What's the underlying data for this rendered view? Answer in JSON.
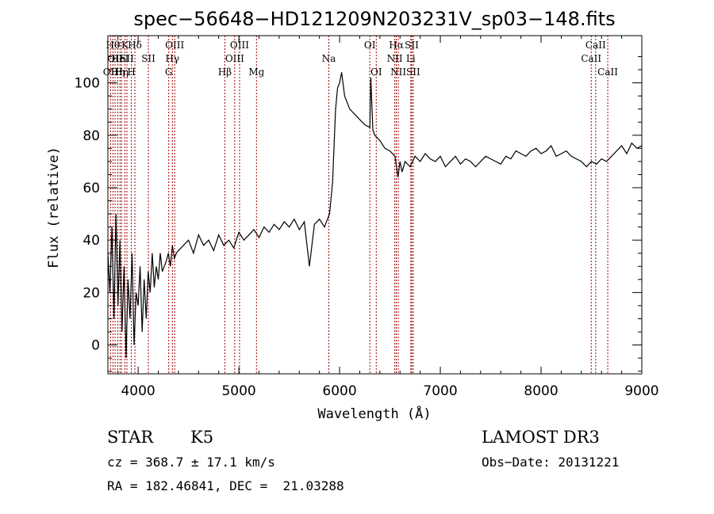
{
  "chart_data": {
    "type": "line",
    "title": "spec−56648−HD121209N203231V_sp03−148.fits",
    "xlabel": "Wavelength (Å)",
    "ylabel": "Flux (relative)",
    "xlim": [
      3700,
      9000
    ],
    "ylim": [
      -11,
      118
    ],
    "x_ticks": [
      4000,
      5000,
      6000,
      7000,
      8000,
      9000
    ],
    "y_ticks": [
      0,
      20,
      40,
      60,
      80,
      100
    ],
    "grid": false,
    "series_color": "#000000",
    "line_marker_color": "#a00000",
    "series": [
      {
        "x": [
          3700,
          3720,
          3740,
          3760,
          3780,
          3800,
          3820,
          3840,
          3860,
          3880,
          3900,
          3920,
          3940,
          3960,
          3980,
          4000,
          4020,
          4040,
          4060,
          4080,
          4100,
          4120,
          4140,
          4160,
          4180,
          4200,
          4220,
          4240,
          4260,
          4280,
          4300,
          4320,
          4340,
          4360,
          4380,
          4400,
          4450,
          4500,
          4550,
          4600,
          4650,
          4700,
          4750,
          4800,
          4850,
          4900,
          4950,
          5000,
          5050,
          5100,
          5150,
          5200,
          5250,
          5300,
          5350,
          5400,
          5450,
          5500,
          5550,
          5600,
          5650,
          5700,
          5750,
          5800,
          5850,
          5900,
          5930,
          5960,
          5980,
          6000,
          6020,
          6050,
          6100,
          6150,
          6200,
          6250,
          6300,
          6310,
          6330,
          6350,
          6400,
          6450,
          6500,
          6550,
          6580,
          6600,
          6620,
          6650,
          6700,
          6750,
          6800,
          6850,
          6900,
          6950,
          7000,
          7050,
          7100,
          7150,
          7200,
          7250,
          7300,
          7350,
          7400,
          7450,
          7500,
          7550,
          7600,
          7650,
          7700,
          7750,
          7800,
          7850,
          7900,
          7950,
          8000,
          8050,
          8100,
          8150,
          8200,
          8250,
          8300,
          8350,
          8400,
          8450,
          8500,
          8550,
          8600,
          8650,
          8700,
          8750,
          8800,
          8850,
          8900,
          8950,
          9000
        ],
        "y": [
          35,
          20,
          45,
          10,
          50,
          15,
          40,
          5,
          30,
          -5,
          25,
          10,
          35,
          0,
          20,
          15,
          30,
          5,
          25,
          10,
          28,
          20,
          35,
          22,
          30,
          25,
          35,
          28,
          30,
          32,
          35,
          30,
          38,
          33,
          35,
          36,
          38,
          40,
          35,
          42,
          38,
          40,
          36,
          42,
          38,
          40,
          37,
          43,
          40,
          42,
          44,
          41,
          45,
          43,
          46,
          44,
          47,
          45,
          48,
          44,
          47,
          30,
          46,
          48,
          45,
          50,
          62,
          90,
          98,
          100,
          104,
          95,
          90,
          88,
          86,
          84,
          83,
          102,
          82,
          80,
          78,
          75,
          74,
          72,
          64,
          70,
          66,
          70,
          68,
          72,
          70,
          73,
          71,
          70,
          72,
          68,
          70,
          72,
          69,
          71,
          70,
          68,
          70,
          72,
          71,
          70,
          69,
          72,
          71,
          74,
          73,
          72,
          74,
          75,
          73,
          74,
          76,
          72,
          73,
          74,
          72,
          71,
          70,
          68,
          70,
          69,
          71,
          70,
          72,
          74,
          76,
          73,
          77,
          75,
          76
        ]
      }
    ],
    "lines": [
      {
        "x": 3727,
        "label": "OII",
        "row": 3
      },
      {
        "x": 3750,
        "label": "Hθ",
        "row": 1
      },
      {
        "x": 3771,
        "label": "OII",
        "row": 2
      },
      {
        "x": 3798,
        "label": "Hη",
        "row": 3
      },
      {
        "x": 3820,
        "label": "HeI",
        "row": 2
      },
      {
        "x": 3835,
        "label": "Hη",
        "row": 3
      },
      {
        "x": 3869,
        "label": "K",
        "row": 1
      },
      {
        "x": 3889,
        "label": "SII",
        "row": 2
      },
      {
        "x": 3933,
        "label": "H",
        "row": 3
      },
      {
        "x": 3968,
        "label": "Hδ",
        "row": 1
      },
      {
        "x": 4102,
        "label": "SII",
        "row": 2
      },
      {
        "x": 4304,
        "label": "G",
        "row": 3
      },
      {
        "x": 4340,
        "label": "Hγ",
        "row": 2
      },
      {
        "x": 4363,
        "label": "OIII",
        "row": 1
      },
      {
        "x": 4861,
        "label": "Hβ",
        "row": 3
      },
      {
        "x": 4959,
        "label": "OIII",
        "row": 2
      },
      {
        "x": 5007,
        "label": "OIII",
        "row": 1
      },
      {
        "x": 5175,
        "label": "Mg",
        "row": 3
      },
      {
        "x": 5893,
        "label": "Na",
        "row": 2
      },
      {
        "x": 6300,
        "label": "OI",
        "row": 1
      },
      {
        "x": 6364,
        "label": "OI",
        "row": 3
      },
      {
        "x": 6548,
        "label": "NII",
        "row": 2
      },
      {
        "x": 6563,
        "label": "Hα",
        "row": 1
      },
      {
        "x": 6583,
        "label": "NII",
        "row": 3
      },
      {
        "x": 6707,
        "label": "Li",
        "row": 2
      },
      {
        "x": 6716,
        "label": "SII",
        "row": 1
      },
      {
        "x": 6731,
        "label": "SII",
        "row": 3
      },
      {
        "x": 8498,
        "label": "CaII",
        "row": 2
      },
      {
        "x": 8542,
        "label": "CaII",
        "row": 1
      },
      {
        "x": 8662,
        "label": "CaII",
        "row": 3
      }
    ]
  },
  "info": {
    "class": "STAR",
    "subclass": "K5",
    "survey": "LAMOST DR3",
    "cz": "cz = 368.7 ± 17.1 km/s",
    "obs_date": "Obs−Date: 20131221",
    "coords": "RA = 182.46841, DEC =  21.03288"
  }
}
